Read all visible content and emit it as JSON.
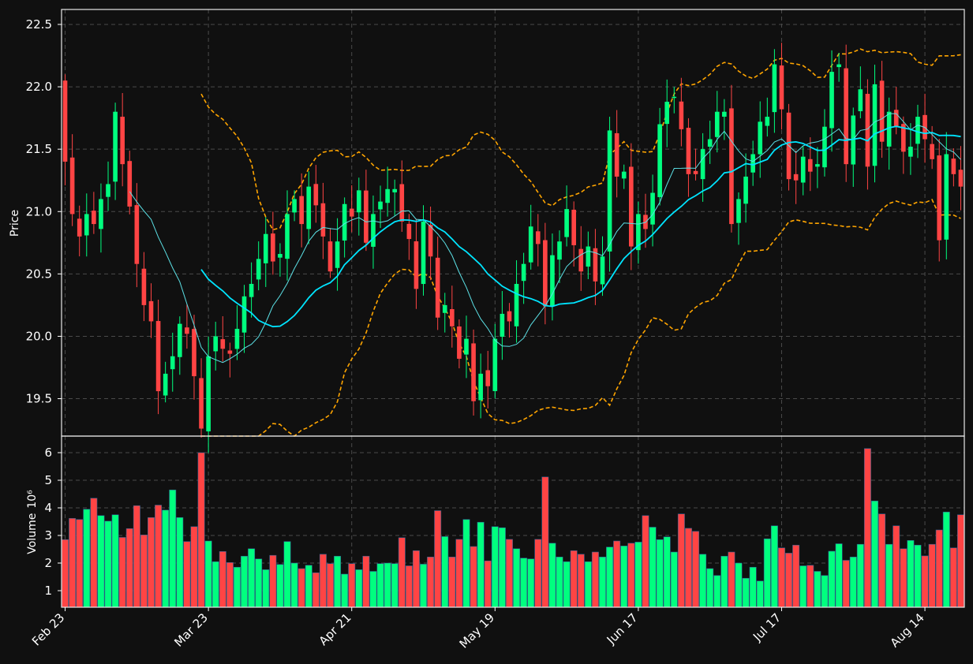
{
  "chart_data": {
    "type": "candlestick",
    "price_panel": {
      "ylabel": "Price",
      "ylim": [
        19.2,
        22.62
      ],
      "yticks": [
        19.5,
        20.0,
        20.5,
        21.0,
        21.5,
        22.0,
        22.5
      ],
      "grid": true
    },
    "volume_panel": {
      "ylabel": "Volume",
      "yscale_label": "10⁶",
      "ylim": [
        0.4,
        6.6
      ],
      "yticks": [
        1,
        2,
        3,
        4,
        5,
        6
      ],
      "grid": true
    },
    "x_ticks": [
      {
        "label": "Feb 23",
        "index": 0
      },
      {
        "label": "Mar 23",
        "index": 20
      },
      {
        "label": "Apr 21",
        "index": 40
      },
      {
        "label": "May 19",
        "index": 60
      },
      {
        "label": "Jun 17",
        "index": 80
      },
      {
        "label": "Jul 17",
        "index": 100
      },
      {
        "label": "Aug 14",
        "index": 120
      }
    ],
    "x_count": 126,
    "colors": {
      "up": "#00ff7f",
      "down": "#ff4444",
      "ma_fast": "#5ce1e6",
      "ma_slow": "#00e5ff",
      "bands": "#ffa500",
      "background": "#101010",
      "grid": "#4a4a4a",
      "text": "#ffffff"
    },
    "closes": [
      21.4,
      20.98,
      20.8,
      20.98,
      20.9,
      21.1,
      21.22,
      21.8,
      21.38,
      21.04,
      20.58,
      20.25,
      20.12,
      19.56,
      19.7,
      19.84,
      20.1,
      20.02,
      19.68,
      19.26,
      19.84,
      20.0,
      19.9,
      19.86,
      20.06,
      20.32,
      20.42,
      20.62,
      20.82,
      20.6,
      20.66,
      20.98,
      21.1,
      20.9,
      21.2,
      21.05,
      20.8,
      20.52,
      20.76,
      21.06,
      20.96,
      21.17,
      20.75,
      20.98,
      21.08,
      21.18,
      21.18,
      20.92,
      20.78,
      20.38,
      20.92,
      20.64,
      20.15,
      20.25,
      20.08,
      19.82,
      19.98,
      19.48,
      19.7,
      19.6,
      19.98,
      20.18,
      20.12,
      20.42,
      20.58,
      20.88,
      20.74,
      20.24,
      20.65,
      20.76,
      21.02,
      20.73,
      20.52,
      20.72,
      20.44,
      20.64,
      21.65,
      21.28,
      21.32,
      20.72,
      20.98,
      20.86,
      21.15,
      21.7,
      21.88,
      21.92,
      21.66,
      21.3,
      21.3,
      21.5,
      21.58,
      21.8,
      21.8,
      20.9,
      21.1,
      21.28,
      21.46,
      21.72,
      21.76,
      22.18,
      21.82,
      21.26,
      21.25,
      21.44,
      21.32,
      21.38,
      21.68,
      22.12,
      22.18,
      21.38,
      21.77,
      21.98,
      21.36,
      22.02,
      21.56,
      21.8,
      21.68,
      21.48,
      21.52,
      21.76,
      21.58,
      21.42,
      20.77,
      21.46,
      21.3,
      21.2
    ],
    "volumes": [
      2.85,
      3.62,
      3.58,
      3.95,
      4.35,
      3.72,
      3.52,
      3.75,
      2.93,
      3.25,
      4.08,
      3.02,
      3.65,
      4.1,
      3.92,
      4.65,
      3.65,
      2.78,
      3.32,
      6.0,
      2.8,
      2.05,
      2.42,
      2.02,
      1.85,
      2.25,
      2.52,
      2.15,
      1.76,
      2.28,
      1.95,
      2.78,
      2.0,
      1.8,
      1.92,
      1.65,
      2.32,
      1.98,
      2.25,
      1.6,
      1.98,
      1.76,
      2.25,
      1.7,
      1.98,
      2.0,
      1.98,
      2.92,
      1.9,
      2.45,
      1.96,
      2.22,
      3.9,
      2.96,
      2.22,
      2.86,
      3.58,
      2.6,
      3.48,
      2.08,
      3.32,
      3.28,
      2.86,
      2.52,
      2.18,
      2.15,
      2.86,
      5.12,
      2.72,
      2.22,
      2.05,
      2.45,
      2.32,
      2.05,
      2.4,
      2.22,
      2.58,
      2.8,
      2.62,
      2.72,
      2.76,
      3.72,
      3.3,
      2.85,
      2.95,
      2.4,
      3.78,
      3.26,
      3.15,
      2.32,
      1.8,
      1.55,
      2.25,
      2.4,
      2.0,
      1.45,
      1.85,
      1.35,
      2.88,
      3.35,
      2.55,
      2.36,
      2.65,
      1.9,
      1.92,
      1.7,
      1.55,
      2.43,
      2.7,
      2.1,
      2.22,
      2.68,
      6.15,
      4.25,
      3.78,
      2.68,
      3.35,
      2.52,
      2.82,
      2.65,
      2.26,
      2.68,
      3.2,
      3.85,
      2.55,
      3.75
    ]
  }
}
